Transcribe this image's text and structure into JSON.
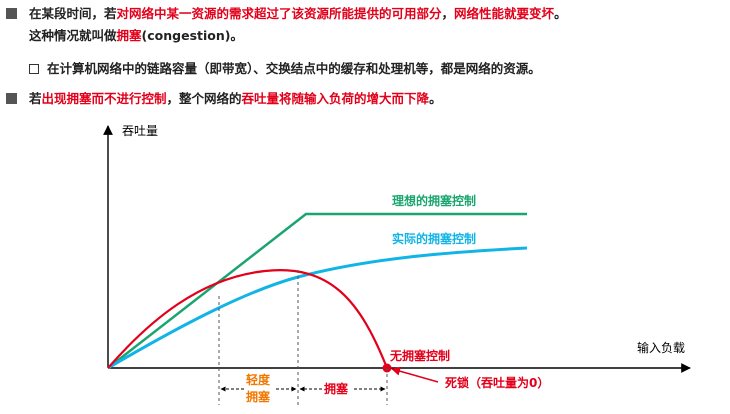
{
  "bullets": {
    "b1_a": "在某段时间，若",
    "b1_red1": "对网络中某一资源的需求超过了该资源所能提供的可用部分",
    "b1_b": "，",
    "b1_red2": "网络性能就要变坏",
    "b1_c": "。",
    "b1_line2_a": "这种情况就叫做",
    "b1_line2_red": "拥塞",
    "b1_line2_b": "(congestion)。",
    "sub": "在计算机网络中的链路容量（即带宽）、交换结点中的缓存和处理机等，都是网络的资源。",
    "b2_a": "若",
    "b2_red1": "出现拥塞而不进行控制",
    "b2_b": "，整个网络的",
    "b2_red2": "吞吐量将随输入负荷的增大而下降",
    "b2_c": "。"
  },
  "diagram": {
    "y_axis_label": "吞吐量",
    "x_axis_label": "输入负载",
    "ideal_label": "理想的拥塞控制",
    "actual_label": "实际的拥塞控制",
    "none_label": "无拥塞控制",
    "deadlock_label": "死锁（吞吐量为0）",
    "light_label_1": "轻度",
    "light_label_2": "拥塞",
    "congest_label": "拥塞",
    "colors": {
      "ideal": "#1aa570",
      "actual": "#12b4e6",
      "none": "#e2001a",
      "light": "#f07800",
      "axis": "#000000"
    }
  }
}
